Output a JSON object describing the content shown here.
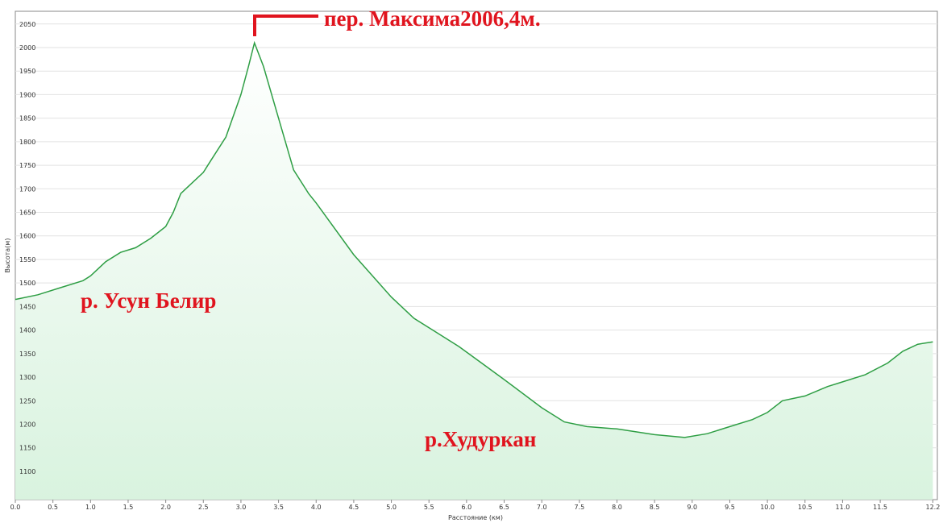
{
  "chart_data": {
    "type": "line",
    "x_label": "Расстояние (км)",
    "y_label": "Высота(м)",
    "annotations": [
      "пер. Максима2006,4м.",
      "р. Усун Белир",
      "р.Худуркан"
    ],
    "x": [
      0,
      0.3,
      0.6,
      0.9,
      1.0,
      1.2,
      1.4,
      1.6,
      1.8,
      2.0,
      2.1,
      2.2,
      2.3,
      2.5,
      2.6,
      2.8,
      3.0,
      3.1,
      3.18,
      3.3,
      3.5,
      3.7,
      3.9,
      4.0,
      4.5,
      5.0,
      5.3,
      5.6,
      5.9,
      6.2,
      6.5,
      7.0,
      7.3,
      7.6,
      8.0,
      8.5,
      8.9,
      9.2,
      9.5,
      9.8,
      10.0,
      10.2,
      10.5,
      10.8,
      11.0,
      11.3,
      11.6,
      11.8,
      12.0,
      12.2
    ],
    "series": [
      {
        "color": "#2e9e44",
        "values": [
          1465,
          1475,
          1490,
          1505,
          1515,
          1545,
          1565,
          1575,
          1595,
          1620,
          1650,
          1690,
          1705,
          1735,
          1760,
          1810,
          1900,
          1960,
          2010,
          1960,
          1850,
          1740,
          1690,
          1670,
          1560,
          1470,
          1425,
          1395,
          1365,
          1330,
          1295,
          1235,
          1205,
          1195,
          1190,
          1178,
          1172,
          1180,
          1195,
          1210,
          1225,
          1250,
          1260,
          1280,
          1290,
          1305,
          1330,
          1355,
          1370,
          1375
        ]
      }
    ],
    "xlim": [
      0,
      12.26
    ],
    "ylim": [
      1040,
      2077
    ],
    "xticks": [
      {
        "value": 0,
        "label": "0.0"
      },
      0.5,
      {
        "value": 1,
        "label": "1.0"
      },
      1.5,
      {
        "value": 2,
        "label": "2.0"
      },
      2.5,
      {
        "value": 3,
        "label": "3.0"
      },
      3.5,
      {
        "value": 4,
        "label": "4.0"
      },
      4.5,
      {
        "value": 5,
        "label": "5.0"
      },
      5.5,
      {
        "value": 6,
        "label": "6.0"
      },
      6.5,
      {
        "value": 7,
        "label": "7.0"
      },
      7.5,
      {
        "value": 8,
        "label": "8.0"
      },
      8.5,
      {
        "value": 9,
        "label": "9.0"
      },
      9.5,
      {
        "value": 10,
        "label": "10.0"
      },
      10.5,
      {
        "value": 11,
        "label": "11.0"
      },
      11.5,
      12.2
    ],
    "yticks": [
      1100,
      1150,
      1200,
      1250,
      1300,
      1350,
      1400,
      1450,
      1500,
      1550,
      1600,
      1650,
      1700,
      1750,
      1800,
      1850,
      1900,
      1950,
      2000,
      2050
    ],
    "grid": true
  }
}
